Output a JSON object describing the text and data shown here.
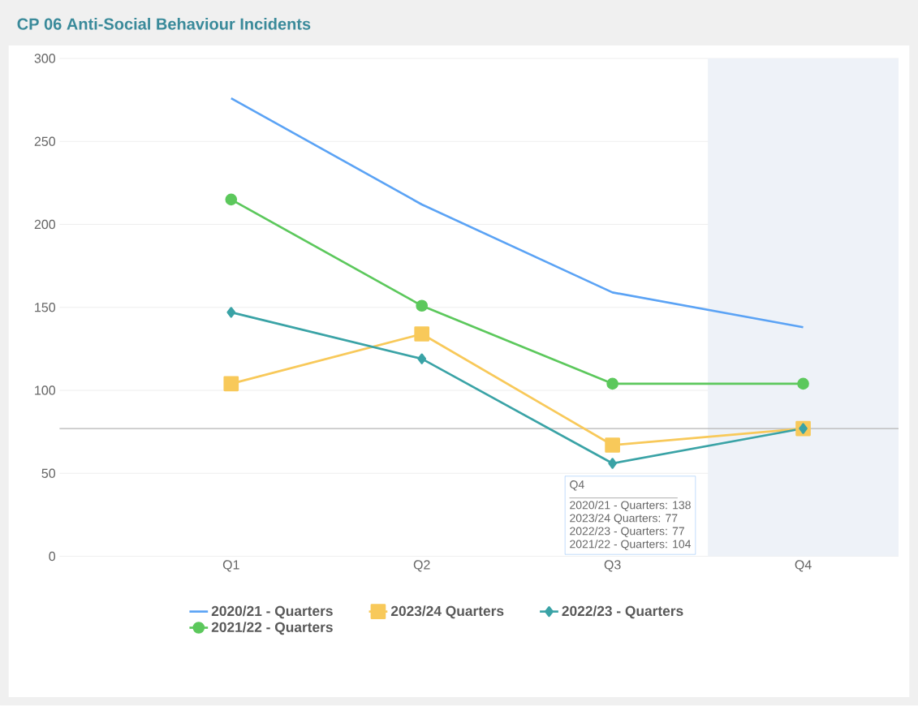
{
  "chart_data": {
    "type": "line",
    "title": "CP 06 Anti-Social Behaviour Incidents",
    "categories": [
      "Q1",
      "Q2",
      "Q3",
      "Q4"
    ],
    "series": [
      {
        "name": "2020/21 - Quarters",
        "color": "#5ba3f5",
        "marker": "none",
        "values": [
          276,
          212,
          159,
          138
        ]
      },
      {
        "name": "2023/24 Quarters",
        "color": "#f8c95a",
        "marker": "square",
        "values": [
          104,
          134,
          67,
          77
        ]
      },
      {
        "name": "2022/23 - Quarters",
        "color": "#3aa3a6",
        "marker": "diamond",
        "values": [
          147,
          119,
          56,
          77
        ]
      },
      {
        "name": "2021/22 - Quarters",
        "color": "#5cc85c",
        "marker": "circle",
        "values": [
          215,
          151,
          104,
          104
        ]
      }
    ],
    "ylim": [
      0,
      300
    ],
    "yticks": [
      0,
      50,
      100,
      150,
      200,
      250,
      300
    ],
    "grid": "y",
    "legend": "bottom",
    "ref_lines": [
      {
        "axis": "y",
        "value": 77,
        "color": "#b4b4b4"
      }
    ],
    "bands": [
      {
        "axis": "x",
        "from": "Q4",
        "to": "Q4",
        "color": "#eef2f8"
      }
    ],
    "annotations": [
      "Q4",
      "2020/21 - Quarters: 138",
      "2023/24 Quarters: 77",
      "2022/23 - Quarters: 77",
      "2021/22 - Quarters: 104"
    ]
  }
}
